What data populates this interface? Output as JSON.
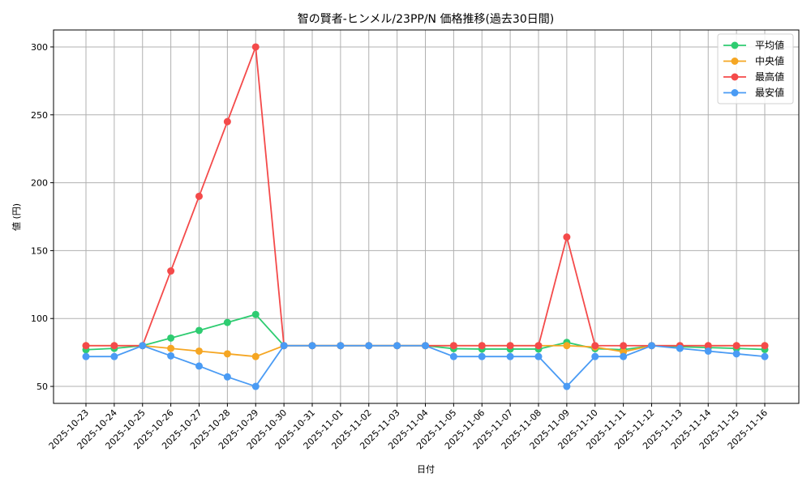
{
  "chart_data": {
    "type": "line",
    "title": "智の賢者-ヒンメル/23PP/N 価格推移(過去30日間)",
    "xlabel": "日付",
    "ylabel": "値 (円)",
    "ylim": [
      37.5,
      312.5
    ],
    "yticks": [
      50,
      100,
      150,
      200,
      250,
      300
    ],
    "grid": true,
    "legend_position": "upper right",
    "x": [
      "2025-10-23",
      "2025-10-24",
      "2025-10-25",
      "2025-10-26",
      "2025-10-27",
      "2025-10-28",
      "2025-10-29",
      "2025-10-30",
      "2025-10-31",
      "2025-11-01",
      "2025-11-02",
      "2025-11-03",
      "2025-11-04",
      "2025-11-05",
      "2025-11-06",
      "2025-11-07",
      "2025-11-08",
      "2025-11-09",
      "2025-11-10",
      "2025-11-11",
      "2025-11-12",
      "2025-11-13",
      "2025-11-14",
      "2025-11-15",
      "2025-11-16"
    ],
    "series": [
      {
        "name": "平均値",
        "color": "#2ecc71",
        "values": [
          77,
          78,
          80,
          85.6,
          91.2,
          97.1,
          103,
          80,
          80,
          80,
          80,
          80,
          80,
          77.8,
          77.5,
          77.5,
          77.5,
          82.4,
          77.8,
          77,
          80,
          79.2,
          78.6,
          78,
          77.2
        ]
      },
      {
        "name": "中央値",
        "color": "#f5a623",
        "values": [
          80,
          80,
          80,
          78,
          76,
          74,
          72,
          80,
          80,
          80,
          80,
          80,
          80,
          80,
          80,
          80,
          80,
          80,
          79,
          75.5,
          80,
          80,
          80,
          80,
          80
        ]
      },
      {
        "name": "最高値",
        "color": "#f44a4a",
        "values": [
          80,
          80,
          80,
          135,
          190,
          245,
          300,
          80,
          80,
          80,
          80,
          80,
          80,
          80,
          80,
          80,
          80,
          160,
          80,
          80,
          80,
          80,
          80,
          80,
          80
        ]
      },
      {
        "name": "最安値",
        "color": "#4a9bf4",
        "values": [
          72,
          72,
          80,
          72.5,
          65,
          57,
          50,
          80,
          80,
          80,
          80,
          80,
          80,
          72,
          72,
          72,
          72,
          50,
          72,
          72,
          80,
          78,
          76,
          74,
          72
        ]
      }
    ]
  }
}
